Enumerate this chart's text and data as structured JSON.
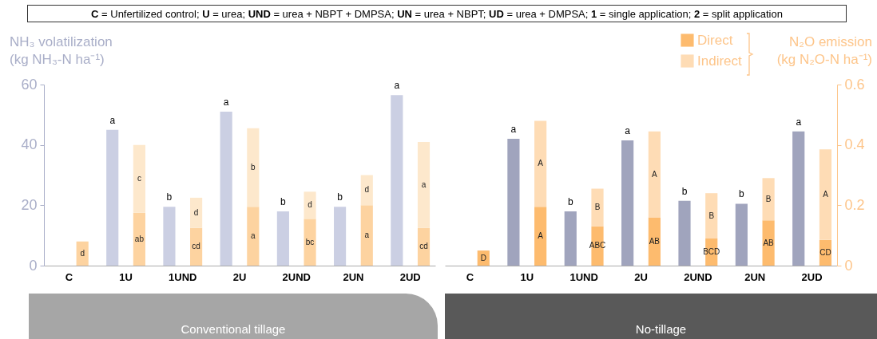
{
  "chart_data": [
    {
      "type": "bar",
      "title": "C = Unfertilized control; U = urea; UND = urea + NBPT + DMPSA; UN = urea + NBPT; UD = urea + DMPSA; 1 = single application; 2 = split application",
      "ylabel": "NH₃ volatilization (kg NH₃-N ha⁻¹)",
      "xlabel": "Conventional tillage",
      "categories": [
        "C",
        "1U",
        "1UND",
        "2U",
        "2UND",
        "2UN",
        "2UD"
      ],
      "stacked": true,
      "ylim": [
        0,
        60
      ],
      "yticks": [
        0,
        20,
        40,
        60
      ],
      "y2lim": [
        0,
        0.6
      ],
      "series": [
        {
          "color": "#cbcfe3",
          "values": [
            null,
            45,
            19.5,
            51,
            18,
            19.5,
            56.5
          ],
          "value_labels": [
            null,
            "a",
            "b",
            "a",
            "b",
            "b",
            "a"
          ]
        },
        {
          "color": "#fdd3a0",
          "axis": "y2",
          "values": [
            0.08,
            0.175,
            0.125,
            0.195,
            0.155,
            0.2,
            0.125
          ],
          "value_labels": [
            "d",
            "ab",
            "cd",
            "a",
            "bc",
            "a",
            "cd"
          ]
        },
        {
          "color": "#fde8cc",
          "axis": "y2",
          "values": [
            null,
            0.225,
            0.1,
            0.26,
            0.09,
            0.1,
            0.285
          ],
          "value_labels": [
            null,
            "c",
            "d",
            "b",
            "d",
            "d",
            "a"
          ]
        }
      ]
    },
    {
      "type": "bar",
      "y2label": "N₂O emission (kg N₂O-N ha⁻¹)",
      "xlabel": "No-tillage",
      "categories": [
        "C",
        "1U",
        "1UND",
        "2U",
        "2UND",
        "2UN",
        "2UD"
      ],
      "stacked": true,
      "legend": "top right",
      "ylim": [
        0,
        60
      ],
      "y2lim": [
        0,
        0.6
      ],
      "y2ticks": [
        0,
        0.2,
        0.4,
        0.6
      ],
      "series": [
        {
          "color": "#a0a4bd",
          "values": [
            null,
            42,
            18,
            41.5,
            21.5,
            20.5,
            44.5
          ],
          "value_labels": [
            null,
            "a",
            "b",
            "a",
            "b",
            "b",
            "a"
          ]
        },
        {
          "name": "Direct",
          "color": "#fdbb6e",
          "axis": "y2",
          "values": [
            0.05,
            0.195,
            0.13,
            0.16,
            0.09,
            0.15,
            0.085
          ],
          "value_labels": [
            "D",
            "A",
            "ABC",
            "AB",
            "BCD",
            "AB",
            "CD"
          ]
        },
        {
          "name": "Indirect",
          "color": "#fedcb5",
          "axis": "y2",
          "values": [
            null,
            0.285,
            0.125,
            0.285,
            0.15,
            0.14,
            0.3
          ],
          "value_labels": [
            null,
            "A",
            "B",
            "A",
            "B",
            "B",
            "A"
          ]
        }
      ]
    }
  ]
}
